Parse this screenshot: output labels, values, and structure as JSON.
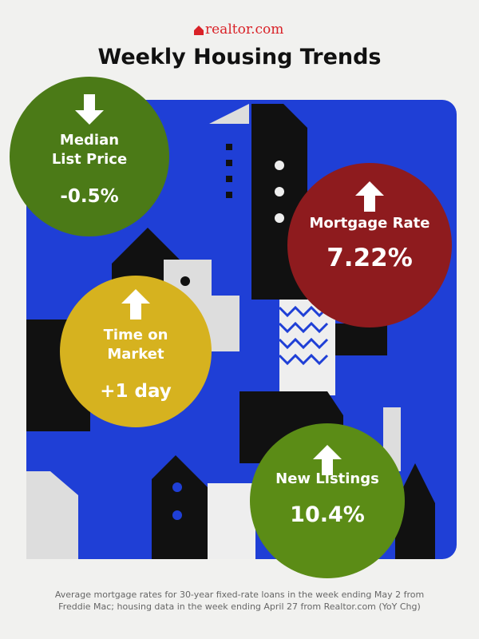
{
  "header": {
    "brand": "realtor.com",
    "title": "Weekly Housing Trends"
  },
  "stats": [
    {
      "label_lines": [
        "Median",
        "List Price"
      ],
      "value": "-0.5%",
      "direction": "down",
      "color": "#4b7a17"
    },
    {
      "label_lines": [
        "Mortgage Rate"
      ],
      "value": "7.22%",
      "direction": "up",
      "color": "#8e1b1e"
    },
    {
      "label_lines": [
        "Time on",
        "Market"
      ],
      "value": "+1 day",
      "direction": "up",
      "color": "#d6b21f"
    },
    {
      "label_lines": [
        "New Listings"
      ],
      "value": "10.4%",
      "direction": "up",
      "color": "#5b8c16"
    }
  ],
  "footnote": [
    "Average mortgage rates for 30-year fixed-rate loans in the week ending May 2 from",
    "Freddie Mac; housing data in the week ending April 27 from Realtor.com (YoY Chg)"
  ]
}
